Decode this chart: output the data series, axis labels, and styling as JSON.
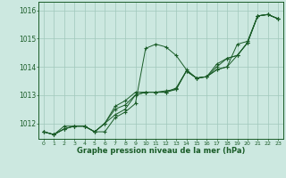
{
  "xlabel": "Graphe pression niveau de la mer (hPa)",
  "background_color": "#cce8e0",
  "line_color": "#1a5c28",
  "grid_color": "#a0c8bc",
  "xlim": [
    -0.5,
    23.5
  ],
  "ylim": [
    1011.45,
    1016.3
  ],
  "yticks": [
    1012,
    1013,
    1014,
    1015,
    1016
  ],
  "xticks": [
    0,
    1,
    2,
    3,
    4,
    5,
    6,
    7,
    8,
    9,
    10,
    11,
    12,
    13,
    14,
    15,
    16,
    17,
    18,
    19,
    20,
    21,
    22,
    23
  ],
  "series": [
    [
      1011.7,
      1011.6,
      1011.8,
      1011.9,
      1011.9,
      1011.7,
      1011.7,
      1012.2,
      1012.4,
      1012.7,
      1014.65,
      1014.8,
      1014.7,
      1014.4,
      1013.9,
      1013.6,
      1013.65,
      1013.9,
      1014.0,
      1014.8,
      1014.9,
      1015.8,
      1015.85,
      1015.7
    ],
    [
      1011.7,
      1011.6,
      1011.8,
      1011.9,
      1011.9,
      1011.7,
      1012.0,
      1012.3,
      1012.5,
      1013.0,
      1013.1,
      1013.1,
      1013.1,
      1013.2,
      1013.85,
      1013.6,
      1013.65,
      1013.9,
      1014.0,
      1014.4,
      1014.85,
      1015.8,
      1015.85,
      1015.7
    ],
    [
      1011.7,
      1011.6,
      1011.8,
      1011.9,
      1011.9,
      1011.7,
      1012.0,
      1012.5,
      1012.65,
      1013.0,
      1013.1,
      1013.1,
      1013.15,
      1013.2,
      1013.85,
      1013.6,
      1013.65,
      1014.0,
      1014.3,
      1014.4,
      1014.85,
      1015.8,
      1015.85,
      1015.7
    ],
    [
      1011.7,
      1011.6,
      1011.9,
      1011.9,
      1011.9,
      1011.7,
      1012.0,
      1012.6,
      1012.8,
      1013.1,
      1013.1,
      1013.1,
      1013.1,
      1013.25,
      1013.85,
      1013.6,
      1013.65,
      1014.1,
      1014.3,
      1014.4,
      1014.85,
      1015.8,
      1015.85,
      1015.7
    ]
  ]
}
